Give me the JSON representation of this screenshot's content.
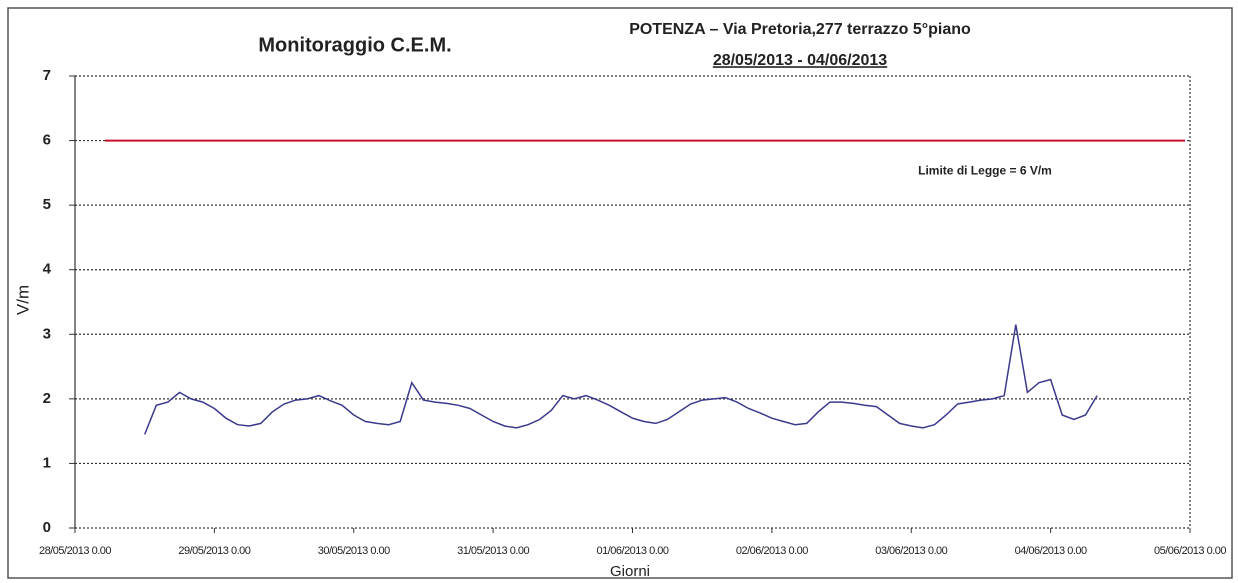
{
  "chart_data": {
    "type": "line",
    "title": "Monitoraggio C.E.M.",
    "subtitle": "POTENZA – Via Pretoria,277  terrazzo 5°piano",
    "period": "28/05/2013 - 04/06/2013",
    "xlabel": "Giorni",
    "ylabel": "V/m",
    "ylim": [
      0,
      7
    ],
    "yticks": [
      0,
      1,
      2,
      3,
      4,
      5,
      6,
      7
    ],
    "grid": true,
    "xlim": [
      "2013-05-28 00:00",
      "2013-06-05 00:00"
    ],
    "xticks": [
      {
        "value": "2013-05-28 00:00",
        "label": "28/05/2013 0.00"
      },
      {
        "value": "2013-05-29 00:00",
        "label": "29/05/2013 0.00"
      },
      {
        "value": "2013-05-30 00:00",
        "label": "30/05/2013 0.00"
      },
      {
        "value": "2013-05-31 00:00",
        "label": "31/05/2013 0.00"
      },
      {
        "value": "2013-06-01 00:00",
        "label": "01/06/2013 0.00"
      },
      {
        "value": "2013-06-02 00:00",
        "label": "02/06/2013 0.00"
      },
      {
        "value": "2013-06-03 00:00",
        "label": "03/06/2013 0.00"
      },
      {
        "value": "2013-06-04 00:00",
        "label": "04/06/2013 0.00"
      },
      {
        "value": "2013-06-05 00:00",
        "label": "05/06/2013 0.00"
      }
    ],
    "limit": {
      "value": 6,
      "label": "Limite di Legge = 6 V/m",
      "color": "#c8102e"
    },
    "x": [
      "2013-05-28 12:00",
      "2013-05-28 14:00",
      "2013-05-28 16:00",
      "2013-05-28 18:00",
      "2013-05-28 20:00",
      "2013-05-28 22:00",
      "2013-05-29 00:00",
      "2013-05-29 02:00",
      "2013-05-29 04:00",
      "2013-05-29 06:00",
      "2013-05-29 08:00",
      "2013-05-29 10:00",
      "2013-05-29 12:00",
      "2013-05-29 14:00",
      "2013-05-29 16:00",
      "2013-05-29 18:00",
      "2013-05-29 20:00",
      "2013-05-29 22:00",
      "2013-05-30 00:00",
      "2013-05-30 02:00",
      "2013-05-30 04:00",
      "2013-05-30 06:00",
      "2013-05-30 08:00",
      "2013-05-30 10:00",
      "2013-05-30 12:00",
      "2013-05-30 14:00",
      "2013-05-30 16:00",
      "2013-05-30 18:00",
      "2013-05-30 20:00",
      "2013-05-30 22:00",
      "2013-05-31 00:00",
      "2013-05-31 02:00",
      "2013-05-31 04:00",
      "2013-05-31 06:00",
      "2013-05-31 08:00",
      "2013-05-31 10:00",
      "2013-05-31 12:00",
      "2013-05-31 14:00",
      "2013-05-31 16:00",
      "2013-05-31 18:00",
      "2013-05-31 20:00",
      "2013-05-31 22:00",
      "2013-06-01 00:00",
      "2013-06-01 02:00",
      "2013-06-01 04:00",
      "2013-06-01 06:00",
      "2013-06-01 08:00",
      "2013-06-01 10:00",
      "2013-06-01 12:00",
      "2013-06-01 14:00",
      "2013-06-01 16:00",
      "2013-06-01 18:00",
      "2013-06-01 20:00",
      "2013-06-01 22:00",
      "2013-06-02 00:00",
      "2013-06-02 02:00",
      "2013-06-02 04:00",
      "2013-06-02 06:00",
      "2013-06-02 08:00",
      "2013-06-02 10:00",
      "2013-06-02 12:00",
      "2013-06-02 14:00",
      "2013-06-02 16:00",
      "2013-06-02 18:00",
      "2013-06-02 20:00",
      "2013-06-02 22:00",
      "2013-06-03 00:00",
      "2013-06-03 02:00",
      "2013-06-03 04:00",
      "2013-06-03 06:00",
      "2013-06-03 08:00",
      "2013-06-03 10:00",
      "2013-06-03 12:00",
      "2013-06-03 14:00",
      "2013-06-03 16:00",
      "2013-06-03 18:00",
      "2013-06-03 20:00",
      "2013-06-03 22:00",
      "2013-06-04 00:00",
      "2013-06-04 02:00",
      "2013-06-04 04:00",
      "2013-06-04 06:00",
      "2013-06-04 08:00"
    ],
    "series": [
      {
        "name": "V/m",
        "color": "#3a3a8c",
        "values": [
          1.45,
          1.9,
          1.95,
          2.1,
          2.0,
          1.95,
          1.85,
          1.7,
          1.6,
          1.58,
          1.62,
          1.8,
          1.92,
          1.98,
          2.0,
          2.05,
          1.97,
          1.9,
          1.75,
          1.65,
          1.62,
          1.6,
          1.65,
          2.25,
          1.98,
          1.95,
          1.93,
          1.9,
          1.85,
          1.75,
          1.65,
          1.58,
          1.55,
          1.6,
          1.68,
          1.82,
          2.05,
          2.0,
          2.05,
          1.98,
          1.9,
          1.8,
          1.7,
          1.65,
          1.62,
          1.68,
          1.8,
          1.92,
          1.98,
          2.0,
          2.02,
          1.95,
          1.85,
          1.78,
          1.7,
          1.65,
          1.6,
          1.62,
          1.8,
          1.95,
          1.95,
          1.93,
          1.9,
          1.88,
          1.75,
          1.62,
          1.58,
          1.55,
          1.6,
          1.75,
          1.92,
          1.95,
          1.98,
          2.0,
          2.05,
          3.15,
          2.1,
          2.25,
          2.3,
          1.75,
          1.68,
          1.75,
          2.05
        ]
      }
    ]
  }
}
